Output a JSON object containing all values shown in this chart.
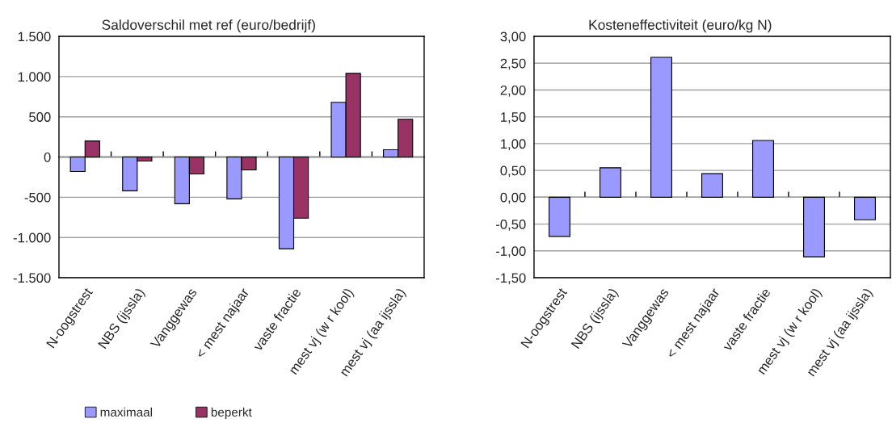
{
  "chart_data": [
    {
      "type": "bar",
      "title": "Saldoverschil met ref (euro/bedrijf)",
      "categories": [
        "N-oogstrest",
        "NBS (ijssla)",
        "Vanggewas",
        "< mest najaar",
        "vaste fractie",
        "mest vj (w r kool)",
        "mest vj (aa ijssla)"
      ],
      "series": [
        {
          "name": "maximaal",
          "color": "#9999ff",
          "values": [
            -180,
            -420,
            -580,
            -520,
            -1140,
            680,
            90
          ]
        },
        {
          "name": "beperkt",
          "color": "#993366",
          "values": [
            200,
            -50,
            -210,
            -160,
            -760,
            1040,
            470
          ]
        }
      ],
      "ylim": [
        -1500,
        1500
      ],
      "yticks": [
        {
          "value": -1500,
          "label": "-1.500"
        },
        {
          "value": -1000,
          "label": "-1.000"
        },
        -500,
        0,
        500,
        {
          "value": 1000,
          "label": "1.000"
        },
        {
          "value": 1500,
          "label": "1.500"
        }
      ],
      "grid": "y",
      "legend": "bottom"
    },
    {
      "type": "bar",
      "title": "Kosteneffectiviteit (euro/kg N)",
      "categories": [
        "N-oogstrest",
        "NBS (ijssla)",
        "Vanggewas",
        "< mest najaar",
        "vaste fractie",
        "mest vj (w r kool)",
        "mest vj (aa ijssla)"
      ],
      "series": [
        {
          "color": "#9999ff",
          "values": [
            -0.73,
            0.55,
            2.61,
            0.44,
            1.06,
            -1.11,
            -0.42
          ]
        }
      ],
      "ylim": [
        -1.5,
        3
      ],
      "yticks": [
        {
          "value": -1.5,
          "label": "-1,50"
        },
        {
          "value": -1,
          "label": "-1,00"
        },
        {
          "value": -0.5,
          "label": "-0,50"
        },
        {
          "value": 0,
          "label": "0,00"
        },
        {
          "value": 0.5,
          "label": "0,50"
        },
        {
          "value": 1,
          "label": "1,00"
        },
        {
          "value": 1.5,
          "label": "1,50"
        },
        {
          "value": 2,
          "label": "2,00"
        },
        {
          "value": 2.5,
          "label": "2,50"
        },
        {
          "value": 3,
          "label": "3,00"
        }
      ],
      "grid": "y"
    }
  ]
}
